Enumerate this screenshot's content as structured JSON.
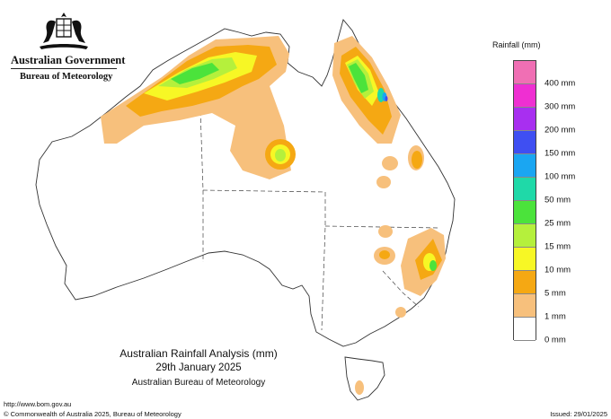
{
  "header": {
    "government": "Australian Government",
    "agency": "Bureau of Meteorology"
  },
  "legend": {
    "title": "Rainfall (mm)",
    "levels": [
      {
        "label": "",
        "color": "#f06fb4"
      },
      {
        "label": "400 mm",
        "color": "#ef2fd2"
      },
      {
        "label": "300 mm",
        "color": "#a82ff0"
      },
      {
        "label": "200 mm",
        "color": "#3f4ff2"
      },
      {
        "label": "150 mm",
        "color": "#1aa6f2"
      },
      {
        "label": "100 mm",
        "color": "#1fd9a8"
      },
      {
        "label": "50 mm",
        "color": "#4be33b"
      },
      {
        "label": "25 mm",
        "color": "#b5f03c"
      },
      {
        "label": "15 mm",
        "color": "#f7f725"
      },
      {
        "label": "10 mm",
        "color": "#f5a813"
      },
      {
        "label": "5 mm",
        "color": "#f7c07c"
      },
      {
        "label": "1 mm",
        "color": "#ffffff"
      },
      {
        "label": "0 mm",
        "color": ""
      }
    ]
  },
  "caption": {
    "title": "Australian Rainfall Analysis (mm)",
    "date": "29th January 2025",
    "source": "Australian Bureau of Meteorology"
  },
  "footer": {
    "url": "http://www.bom.gov.au",
    "copyright": "© Commonwealth of Australia 2025, Bureau of Meteorology",
    "issued": "Issued: 29/01/2025"
  }
}
